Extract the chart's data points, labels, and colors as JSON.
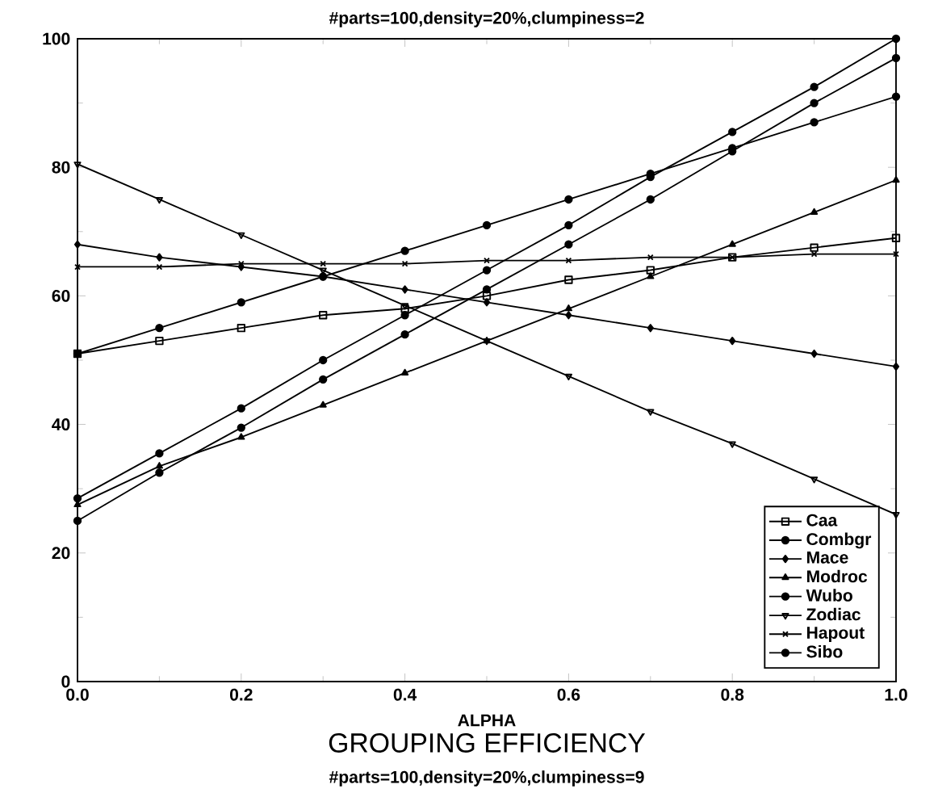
{
  "chart_data": {
    "type": "line",
    "title": "#parts=100,density=20%,clumpiness=2",
    "subtitle": "GROUPING EFFICIENCY",
    "xlabel": "ALPHA",
    "annotations": [
      "#parts=100,density=20%,clumpiness=9"
    ],
    "x": [
      0,
      0.1,
      0.2,
      0.3,
      0.4,
      0.5,
      0.6,
      0.7,
      0.8,
      0.9,
      1.0
    ],
    "series": [
      {
        "name": "Caa",
        "color": "#000000",
        "marker": "square-open",
        "values": [
          51,
          53,
          55,
          57,
          58,
          60,
          62.5,
          64,
          66,
          67.5,
          69
        ]
      },
      {
        "name": "Combgr",
        "color": "#000000",
        "marker": "circle",
        "values": [
          28.5,
          35.5,
          42.5,
          50,
          57,
          64,
          71,
          78.5,
          85.5,
          92.5,
          100
        ]
      },
      {
        "name": "Mace",
        "color": "#000000",
        "marker": "diamond",
        "values": [
          68,
          66,
          64.5,
          63,
          61,
          59,
          57,
          55,
          53,
          51,
          49
        ]
      },
      {
        "name": "Modroc",
        "color": "#000000",
        "marker": "triangle",
        "values": [
          27.5,
          33.5,
          38,
          43,
          48,
          53,
          58,
          63,
          68,
          73,
          78
        ]
      },
      {
        "name": "Wubo",
        "color": "#000000",
        "marker": "circle",
        "values": [
          51,
          55,
          59,
          63,
          67,
          71,
          75,
          79,
          83,
          87,
          91
        ]
      },
      {
        "name": "Zodiac",
        "color": "#000000",
        "marker": "triangle-down",
        "values": [
          80.5,
          75,
          69.5,
          64,
          58.5,
          53,
          47.5,
          42,
          37,
          31.5,
          26
        ]
      },
      {
        "name": "Hapout",
        "color": "#000000",
        "marker": "cross",
        "values": [
          64.5,
          64.5,
          65,
          65,
          65,
          65.5,
          65.5,
          66,
          66,
          66.5,
          66.5
        ]
      },
      {
        "name": "Sibo",
        "color": "#000000",
        "marker": "circle",
        "values": [
          25,
          32.5,
          39.5,
          47,
          54,
          61,
          68,
          75,
          82.5,
          90,
          97
        ]
      }
    ],
    "xlim": [
      0,
      1
    ],
    "ylim": [
      0,
      100
    ],
    "xticks": [
      {
        "value": 0,
        "label": "0.0"
      },
      {
        "value": 0.2,
        "label": "0.2"
      },
      {
        "value": 0.4,
        "label": "0.4"
      },
      {
        "value": 0.6,
        "label": "0.6"
      },
      {
        "value": 0.8,
        "label": "0.8"
      },
      {
        "value": 1.0,
        "label": "1.0"
      }
    ],
    "yticks": [
      0,
      20,
      40,
      60,
      80,
      100
    ],
    "grid": false,
    "legend": "bottom right",
    "line_style": "solid"
  }
}
